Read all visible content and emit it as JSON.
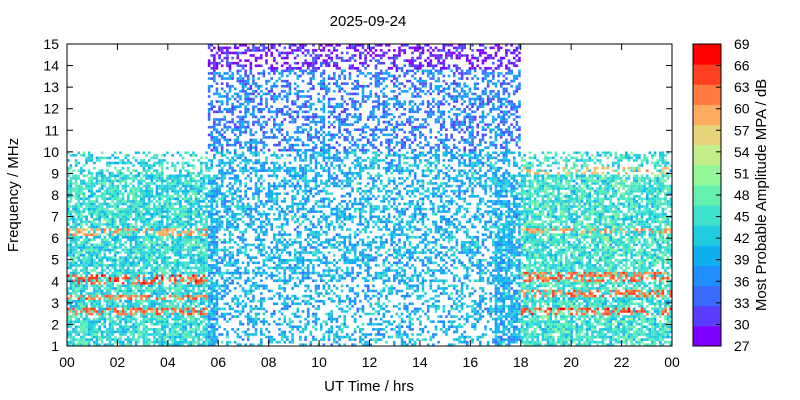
{
  "chart_data": {
    "type": "heatmap",
    "title": "2025-09-24",
    "xlabel": "UT Time / hrs",
    "ylabel": "Frequency / MHz",
    "xlim": [
      0,
      24
    ],
    "ylim": [
      1,
      15
    ],
    "x_ticks": [
      "00",
      "02",
      "04",
      "06",
      "08",
      "10",
      "12",
      "14",
      "16",
      "18",
      "20",
      "22",
      "00"
    ],
    "y_ticks": [
      "1",
      "2",
      "3",
      "4",
      "5",
      "6",
      "7",
      "8",
      "9",
      "10",
      "11",
      "12",
      "13",
      "14",
      "15"
    ],
    "colorbar": {
      "label": "Most Probable Amplitude MPA / dB",
      "ticks": [
        "27",
        "30",
        "33",
        "36",
        "39",
        "42",
        "45",
        "48",
        "51",
        "54",
        "57",
        "60",
        "63",
        "66",
        "69"
      ],
      "range": [
        27,
        69
      ],
      "colors": [
        "#7f00ff",
        "#5a3cff",
        "#3a6aff",
        "#1f8fff",
        "#10b0ee",
        "#20cce0",
        "#3fe2cc",
        "#66f0b0",
        "#95f898",
        "#c2ee88",
        "#e6d278",
        "#ffac60",
        "#ff7a40",
        "#ff4020",
        "#ff0000"
      ]
    },
    "regions": [
      {
        "x": [
          0,
          5.6
        ],
        "y": [
          1,
          10
        ],
        "level": 44
      },
      {
        "x": [
          5.6,
          18
        ],
        "y": [
          1,
          10
        ],
        "level": 40
      },
      {
        "x": [
          18,
          24
        ],
        "y": [
          1,
          10
        ],
        "level": 45
      },
      {
        "x": [
          5.6,
          18
        ],
        "y": [
          10,
          15
        ],
        "level": 36
      },
      {
        "x": [
          5.6,
          18
        ],
        "y": [
          13.8,
          15
        ],
        "level": 29
      }
    ],
    "bands": [
      {
        "x": [
          0,
          5.6
        ],
        "y": [
          2.4,
          2.8
        ],
        "level": 63
      },
      {
        "x": [
          0,
          5.6
        ],
        "y": [
          3.1,
          3.4
        ],
        "level": 62
      },
      {
        "x": [
          0,
          5.6
        ],
        "y": [
          3.8,
          4.3
        ],
        "level": 64
      },
      {
        "x": [
          0,
          5.6
        ],
        "y": [
          6.1,
          6.4
        ],
        "level": 60
      },
      {
        "x": [
          18,
          24
        ],
        "y": [
          2.4,
          2.8
        ],
        "level": 64
      },
      {
        "x": [
          18,
          24
        ],
        "y": [
          3.3,
          3.6
        ],
        "level": 63
      },
      {
        "x": [
          18,
          24
        ],
        "y": [
          4.0,
          4.4
        ],
        "level": 63
      },
      {
        "x": [
          18,
          24
        ],
        "y": [
          6.2,
          6.5
        ],
        "level": 60
      },
      {
        "x": [
          18,
          24
        ],
        "y": [
          8.9,
          9.3
        ],
        "level": 58
      }
    ]
  }
}
